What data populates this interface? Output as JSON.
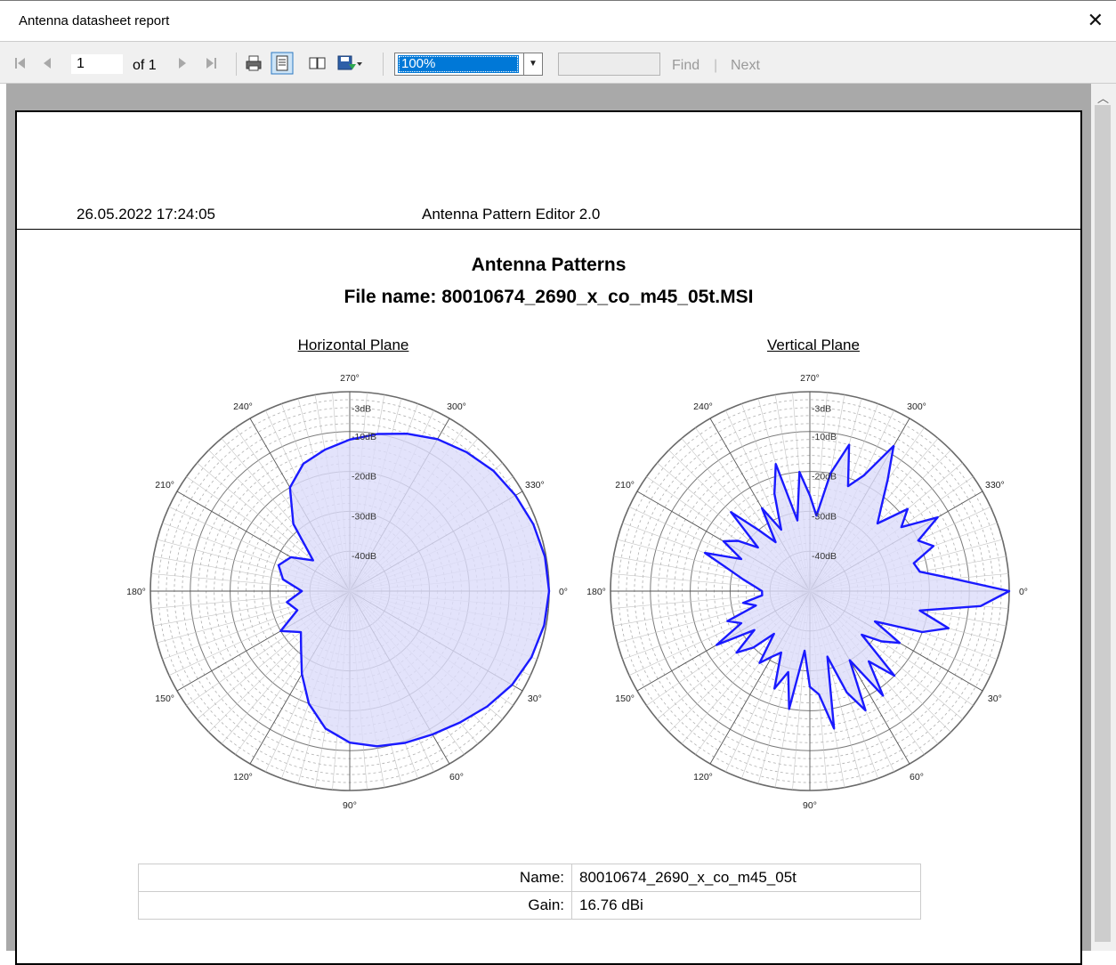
{
  "window": {
    "title": "Antenna datasheet report",
    "close_glyph": "✕"
  },
  "toolbar": {
    "first_icon": "first-page-icon",
    "prev_icon": "previous-page-icon",
    "page_current": "1",
    "page_of": "of 1",
    "next_icon": "next-page-icon",
    "last_icon": "last-page-icon",
    "print_icon": "print-icon",
    "print_layout_icon": "print-layout-icon",
    "page_setup_icon": "page-setup-icon",
    "export_icon": "export-save-icon",
    "zoom_value": "100%",
    "find_input_value": "",
    "find_label": "Find",
    "separator": "|",
    "next_label": "Next"
  },
  "report": {
    "timestamp": "26.05.2022 17:24:05",
    "app_name": "Antenna Pattern Editor 2.0",
    "title_line1": "Antenna Patterns",
    "title_line2": "File name: 80010674_2690_x_co_m45_05t.MSI",
    "table": [
      {
        "key": "Name:",
        "value": "80010674_2690_x_co_m45_05t"
      },
      {
        "key": "Gain:",
        "value": "16.76 dBi"
      }
    ]
  },
  "colors": {
    "accent": "#0078d7",
    "pattern_stroke": "#1a1aff",
    "pattern_fill": "#dcdcfa"
  },
  "chart_data": [
    {
      "type": "polar",
      "title": "Horizontal Plane",
      "angle_labels": [
        "0°",
        "30°",
        "60°",
        "90°",
        "120°",
        "150°",
        "180°",
        "210°",
        "240°",
        "270°",
        "300°",
        "330°"
      ],
      "ring_labels": [
        "-3dB",
        "-10dB",
        "-20dB",
        "-30dB",
        "-40dB"
      ],
      "series": [
        {
          "angles_deg": [
            0,
            10,
            20,
            30,
            40,
            50,
            60,
            70,
            80,
            90,
            100,
            110,
            120,
            130,
            140,
            150,
            160,
            170,
            180,
            190,
            200,
            210,
            220,
            230,
            240,
            250,
            260,
            270,
            280,
            290,
            300,
            310,
            320,
            330,
            340,
            350
          ],
          "gain_db": [
            0,
            -0.5,
            -1.5,
            -3,
            -5,
            -7,
            -8.5,
            -9.5,
            -10.5,
            -12,
            -15,
            -20,
            -26,
            -31,
            -34,
            -30,
            -36,
            -34,
            -38,
            -33,
            -31,
            -33,
            -38,
            -28,
            -20,
            -16,
            -14,
            -12,
            -10,
            -8,
            -6,
            -4.5,
            -3,
            -2,
            -1,
            -0.3
          ]
        }
      ]
    },
    {
      "type": "polar",
      "title": "Vertical Plane",
      "angle_labels": [
        "0°",
        "30°",
        "60°",
        "90°",
        "120°",
        "150°",
        "180°",
        "210°",
        "240°",
        "270°",
        "300°",
        "330°"
      ],
      "ring_labels": [
        "-3dB",
        "-10dB",
        "-20dB",
        "-30dB",
        "-40dB"
      ],
      "series": [
        {
          "angles_deg": [
            0,
            5,
            10,
            15,
            20,
            25,
            30,
            35,
            40,
            45,
            50,
            55,
            60,
            65,
            70,
            75,
            80,
            85,
            90,
            95,
            100,
            105,
            110,
            115,
            120,
            125,
            130,
            135,
            140,
            145,
            150,
            155,
            160,
            165,
            170,
            175,
            180,
            185,
            190,
            195,
            200,
            205,
            210,
            215,
            220,
            225,
            230,
            235,
            240,
            245,
            250,
            255,
            260,
            265,
            270,
            275,
            280,
            285,
            290,
            295,
            300,
            305,
            310,
            315,
            320,
            325,
            330,
            335,
            340,
            345,
            350,
            355
          ],
          "gain_db": [
            0,
            -7,
            -22,
            -14,
            -20,
            -32,
            -24,
            -28,
            -33,
            -20,
            -27,
            -18,
            -30,
            -17,
            -23,
            -33,
            -15,
            -24,
            -26,
            -35,
            -20,
            -29,
            -24,
            -33,
            -31,
            -28,
            -36,
            -30,
            -26,
            -33,
            -23,
            -31,
            -28,
            -36,
            -33,
            -38,
            -38,
            -36,
            -33,
            -29,
            -22,
            -31,
            -25,
            -28,
            -33,
            -22,
            -30,
            -35,
            -26,
            -33,
            -24,
            -17,
            -32,
            -20,
            -26,
            -31,
            -20,
            -12,
            -22,
            -18,
            -8,
            -16,
            -22,
            -26,
            -18,
            -22,
            -13,
            -20,
            -17,
            -23,
            -22,
            -14
          ]
        }
      ]
    }
  ]
}
